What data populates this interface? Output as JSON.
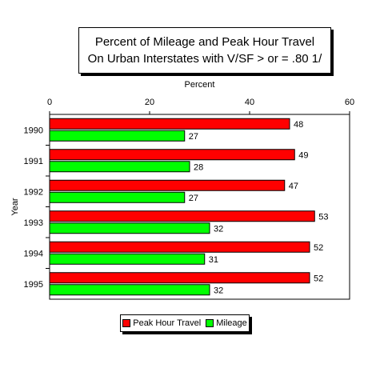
{
  "chart_data": {
    "type": "bar",
    "orientation": "horizontal",
    "title": "Percent of Mileage and Peak Hour Travel",
    "subtitle": "On Urban Interstates with V/SF > or = .80  1/",
    "xlabel": "Percent",
    "ylabel": "Year",
    "xlim": [
      0,
      60
    ],
    "x_ticks": [
      0,
      20,
      40,
      60
    ],
    "categories": [
      "1990",
      "1991",
      "1992",
      "1993",
      "1994",
      "1995"
    ],
    "series": [
      {
        "name": "Peak Hour Travel",
        "color": "#ff0000",
        "values": [
          48,
          49,
          47,
          53,
          52,
          52
        ]
      },
      {
        "name": "Mileage",
        "color": "#00ff00",
        "values": [
          27,
          28,
          27,
          32,
          31,
          32
        ]
      }
    ],
    "grid": false,
    "legend_position": "bottom"
  }
}
